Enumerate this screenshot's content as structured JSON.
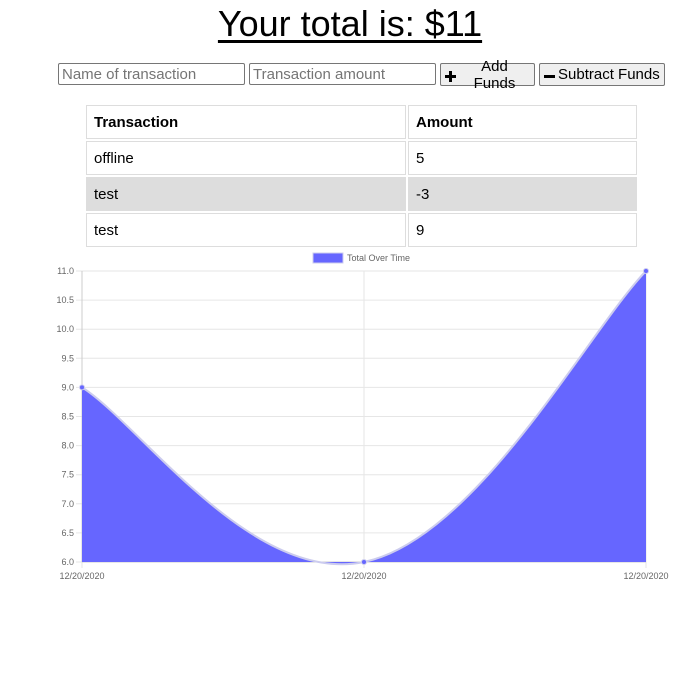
{
  "header": {
    "total_label": "Your total is: $11"
  },
  "form": {
    "name_placeholder": "Name of transaction",
    "amount_placeholder": "Transaction amount",
    "add_label": "Add Funds",
    "subtract_label": "Subtract Funds"
  },
  "table": {
    "headers": [
      "Transaction",
      "Amount"
    ],
    "rows": [
      {
        "name": "offline",
        "amount": "5"
      },
      {
        "name": "test",
        "amount": "-3"
      },
      {
        "name": "test",
        "amount": "9"
      }
    ]
  },
  "chart_data": {
    "type": "area",
    "series": [
      {
        "name": "Total Over Time",
        "values": [
          9,
          6,
          11
        ],
        "color": "#6666ff"
      }
    ],
    "x": [
      "12/20/2020",
      "12/20/2020",
      "12/20/2020"
    ],
    "ylim": [
      6,
      11
    ],
    "yticks": [
      "6.0",
      "6.5",
      "7.0",
      "7.5",
      "8.0",
      "8.5",
      "9.0",
      "9.5",
      "10.0",
      "10.5",
      "11.0"
    ],
    "legend": "top-center",
    "grid": true
  }
}
